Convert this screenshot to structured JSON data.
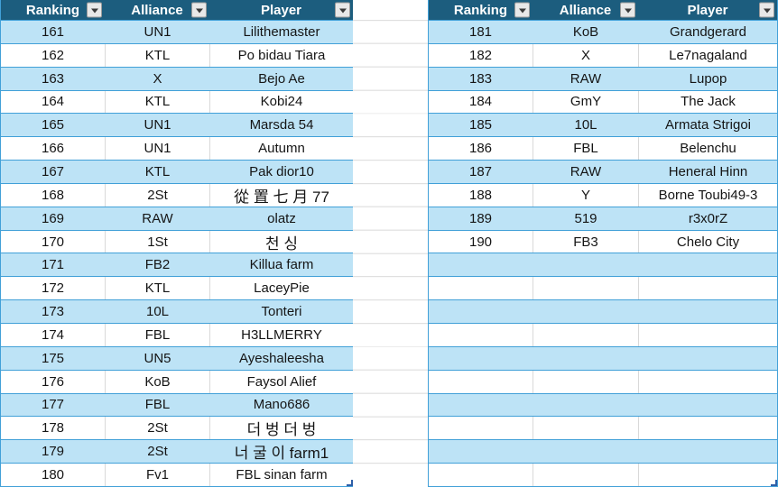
{
  "colors": {
    "header_bg": "#1C5D7E",
    "header_text": "#FFFFFF",
    "band_fill": "#BDE3F6",
    "row_border": "#41A0D8",
    "cell_divider": "#D9D9D9",
    "sheet_gridline": "#DADADA",
    "resize_handle": "#2E5FA8",
    "filter_btn_bg": "#E8E8E8",
    "filter_btn_border": "#9B9B9B",
    "filter_arrow": "#3A3A3A",
    "text": "#151515"
  },
  "icons": {
    "filter_dropdown_arrow": "▼"
  },
  "tables": [
    {
      "id": "left",
      "headers": [
        "Ranking",
        "Alliance",
        "Player"
      ],
      "rows": [
        [
          "161",
          "UN1",
          "Lilithemaster"
        ],
        [
          "162",
          "KTL",
          "Po bidau Tiara"
        ],
        [
          "163",
          "X",
          "Bejo Ae"
        ],
        [
          "164",
          "KTL",
          "Kobi24"
        ],
        [
          "165",
          "UN1",
          "Marsda 54"
        ],
        [
          "166",
          "UN1",
          "Autumn"
        ],
        [
          "167",
          "KTL",
          "Pak dior10"
        ],
        [
          "168",
          "2St",
          "從 置 七 月 77"
        ],
        [
          "169",
          "RAW",
          "olatz"
        ],
        [
          "170",
          "1St",
          "천 싱"
        ],
        [
          "171",
          "FB2",
          "Killua farm"
        ],
        [
          "172",
          "KTL",
          "LaceyPie"
        ],
        [
          "173",
          "10L",
          "Tonteri"
        ],
        [
          "174",
          "FBL",
          "H3LLMERRY"
        ],
        [
          "175",
          "UN5",
          "Ayeshaleesha"
        ],
        [
          "176",
          "KoB",
          "Faysol Alief"
        ],
        [
          "177",
          "FBL",
          "Mano686"
        ],
        [
          "178",
          "2St",
          "더 벙 더 벙"
        ],
        [
          "179",
          "2St",
          "너 굴 이 farm1"
        ],
        [
          "180",
          "Fv1",
          "FBL sinan farm"
        ]
      ],
      "empty_rows": 0
    },
    {
      "id": "right",
      "headers": [
        "Ranking",
        "Alliance",
        "Player"
      ],
      "rows": [
        [
          "181",
          "KoB",
          "Grandgerard"
        ],
        [
          "182",
          "X",
          "Le7nagaland"
        ],
        [
          "183",
          "RAW",
          "Lupop"
        ],
        [
          "184",
          "GmY",
          "The Jack"
        ],
        [
          "185",
          "10L",
          "Armata Strigoi"
        ],
        [
          "186",
          "FBL",
          "Belenchu"
        ],
        [
          "187",
          "RAW",
          "Heneral Hinn"
        ],
        [
          "188",
          "Y",
          "Borne Toubi49-3"
        ],
        [
          "189",
          "519",
          "r3x0rZ"
        ],
        [
          "190",
          "FB3",
          "Chelo City"
        ]
      ],
      "empty_rows": 10
    }
  ]
}
